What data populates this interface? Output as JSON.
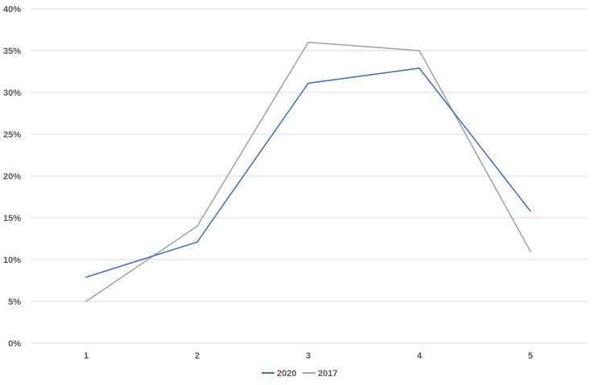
{
  "chart_data": {
    "type": "line",
    "categories": [
      "1",
      "2",
      "3",
      "4",
      "5"
    ],
    "series": [
      {
        "name": "2020",
        "color": "#4472C4",
        "values": [
          7.9,
          12.1,
          31.1,
          32.9,
          15.8
        ]
      },
      {
        "name": "2017",
        "color": "#A5A5A5",
        "values": [
          5.0,
          14.0,
          36.0,
          35.0,
          11.0
        ]
      }
    ],
    "ylim": [
      0,
      40
    ],
    "y_ticks": [
      "0%",
      "5%",
      "10%",
      "15%",
      "20%",
      "25%",
      "30%",
      "35%",
      "40%"
    ],
    "grid": true,
    "legend": "bottom",
    "gridline_color": "#D9D9D9"
  }
}
